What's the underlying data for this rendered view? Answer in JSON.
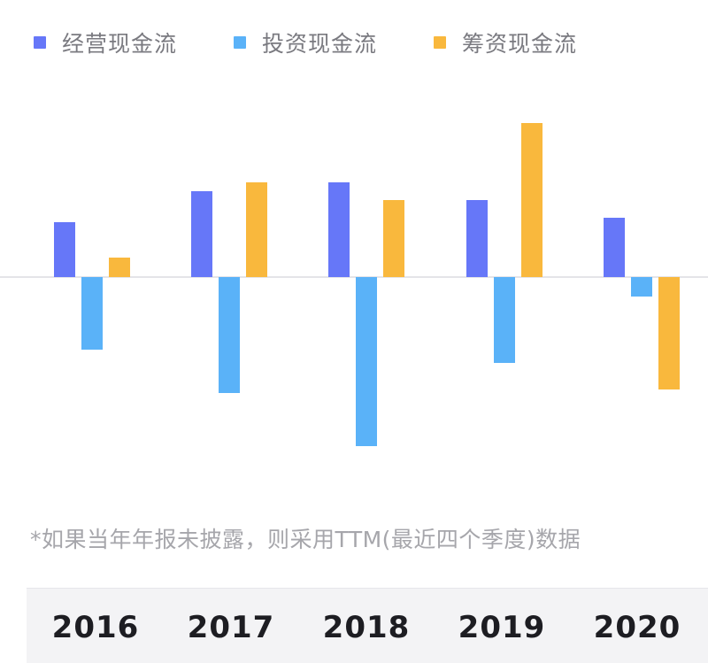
{
  "chart_data": {
    "type": "bar",
    "title": "",
    "categories": [
      "2016",
      "2017",
      "2018",
      "2019",
      "2020"
    ],
    "series": [
      {
        "name": "经营现金流",
        "color": "#6677f8",
        "values": [
          62,
          97,
          107,
          87,
          67
        ]
      },
      {
        "name": "投资现金流",
        "color": "#5ab2f8",
        "values": [
          -82,
          -131,
          -191,
          -97,
          -22
        ]
      },
      {
        "name": "筹资现金流",
        "color": "#f9b83d",
        "values": [
          22,
          107,
          87,
          174,
          -127
        ]
      }
    ],
    "ylim": [
      -250,
      230
    ],
    "baseline_color": "#e4e4e8",
    "xlabel": "",
    "ylabel": ""
  },
  "footnote": "*如果当年年报未披露，则采用TTM(最近四个季度)数据"
}
